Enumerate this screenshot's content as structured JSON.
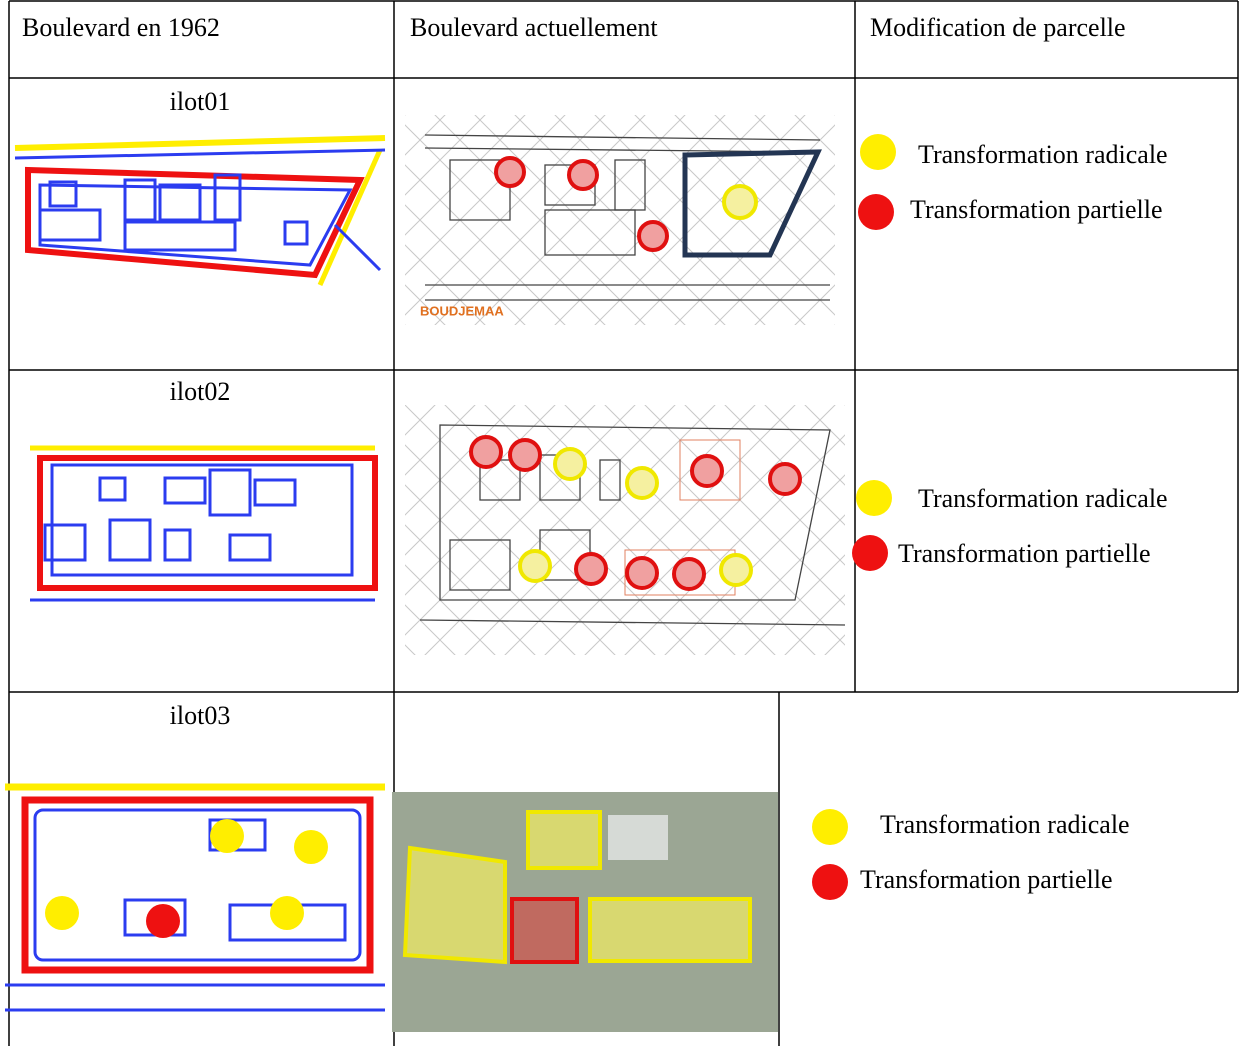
{
  "table": {
    "headers": [
      "Boulevard en 1962",
      "Boulevard actuellement",
      "Modification de parcelle"
    ],
    "rows": [
      {
        "label": "ilot01",
        "map_label": "BOUDJEMAA",
        "legend": [
          "Transformation radicale",
          "Transformation partielle"
        ]
      },
      {
        "label": "ilot02",
        "legend": [
          "Transformation radicale",
          "Transformation partielle"
        ]
      },
      {
        "label": "ilot03",
        "legend": [
          "Transformation radicale",
          "Transformation partielle"
        ]
      }
    ]
  }
}
